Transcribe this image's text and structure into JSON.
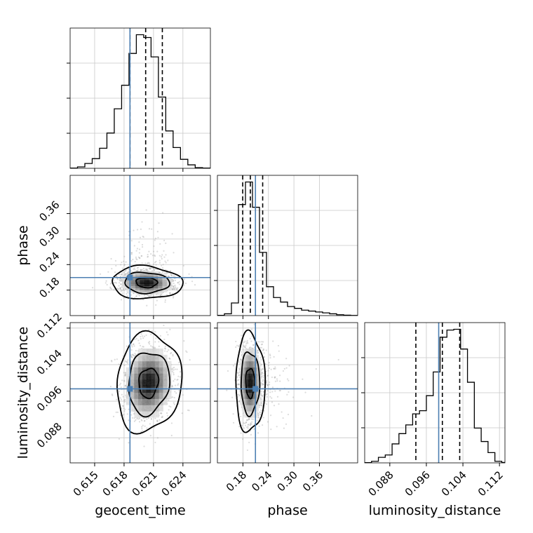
{
  "chart_data": {
    "type": "corner",
    "parameters": [
      "geocent_time",
      "phase",
      "luminosity_distance"
    ],
    "axis_labels": {
      "geocent_time": "geocent_time",
      "phase": "phase",
      "luminosity_distance": "luminosity_distance"
    },
    "ranges": {
      "geocent_time": [
        0.6125,
        0.6268
      ],
      "phase": [
        0.12,
        0.45
      ],
      "luminosity_distance": [
        0.0825,
        0.1132
      ]
    },
    "ticks": {
      "geocent_time": [
        0.615,
        0.618,
        0.621,
        0.624
      ],
      "phase": [
        0.18,
        0.24,
        0.3,
        0.36
      ],
      "luminosity_distance": [
        0.088,
        0.096,
        0.104,
        0.112
      ]
    },
    "tick_labels": {
      "geocent_time": [
        "0.615",
        "0.618",
        "0.621",
        "0.624"
      ],
      "phase": [
        "0.18",
        "0.24",
        "0.30",
        "0.36"
      ],
      "luminosity_distance": [
        "0.088",
        "0.096",
        "0.104",
        "0.112"
      ]
    },
    "truths": {
      "geocent_time": 0.6186,
      "phase": 0.2095,
      "luminosity_distance": 0.0987
    },
    "quantiles": {
      "geocent_time": [
        0.6186,
        0.6202,
        0.6219
      ],
      "phase": [
        0.1795,
        0.1975,
        0.2265
      ],
      "luminosity_distance": [
        0.0937,
        0.0995,
        0.1033
      ]
    },
    "histograms": {
      "geocent_time": {
        "edges": [
          0.6125,
          0.61325,
          0.614,
          0.61475,
          0.6155,
          0.61625,
          0.617,
          0.61775,
          0.6185,
          0.61925,
          0.62,
          0.62075,
          0.6215,
          0.62225,
          0.623,
          0.62375,
          0.6245,
          0.62525,
          0.626,
          0.62675
        ],
        "counts": [
          0.3,
          2,
          7,
          14,
          29,
          51,
          86,
          120,
          166,
          193,
          189,
          161,
          103,
          54,
          30,
          13,
          5,
          1,
          0.3
        ]
      },
      "phase": {
        "edges": [
          0.12,
          0.1365,
          0.153,
          0.1695,
          0.186,
          0.2025,
          0.219,
          0.2355,
          0.252,
          0.2685,
          0.285,
          0.3015,
          0.318,
          0.3345,
          0.351,
          0.3675,
          0.384,
          0.4005,
          0.417,
          0.4335,
          0.45
        ],
        "counts": [
          0.3,
          2,
          14,
          123,
          148,
          120,
          70,
          32,
          20,
          15,
          10,
          8,
          6,
          5,
          4,
          3,
          2,
          1,
          0.5,
          0.2
        ]
      },
      "luminosity_distance": {
        "edges": [
          0.0825,
          0.084,
          0.0855,
          0.087,
          0.0885,
          0.09,
          0.0915,
          0.093,
          0.0945,
          0.096,
          0.0975,
          0.099,
          0.1005,
          0.102,
          0.1035,
          0.105,
          0.1065,
          0.108,
          0.1095,
          0.111,
          0.1125,
          0.1132
        ],
        "counts": [
          0.3,
          2,
          7,
          10,
          24,
          37,
          48,
          62,
          66,
          85,
          115,
          159,
          168,
          169,
          144,
          102,
          44,
          27,
          13,
          2,
          0.5
        ]
      }
    },
    "pairs": [
      {
        "x": "geocent_time",
        "y": "phase",
        "peak": [
          0.6203,
          0.1975
        ],
        "spread": [
          0.0012,
          0.0128
        ],
        "correlation": -0.05,
        "levels": [
          0.9,
          1.9,
          3.0
        ]
      },
      {
        "x": "geocent_time",
        "y": "luminosity_distance",
        "peak": [
          0.6205,
          0.1
        ],
        "spread": [
          0.0011,
          0.0036
        ],
        "correlation": 0.1,
        "levels": [
          0.9,
          1.9,
          3.0
        ]
      },
      {
        "x": "phase",
        "y": "luminosity_distance",
        "peak": [
          0.197,
          0.1
        ],
        "spread": [
          0.0115,
          0.0036
        ],
        "correlation": 0.0,
        "levels": [
          0.9,
          1.9,
          3.0
        ]
      }
    ],
    "colors": {
      "truth": "#4c7fb2",
      "contour": "#000000",
      "histogram": "#000000",
      "samples": "#9a9a9a",
      "grid": "#c8c8c8"
    },
    "grid": true
  }
}
